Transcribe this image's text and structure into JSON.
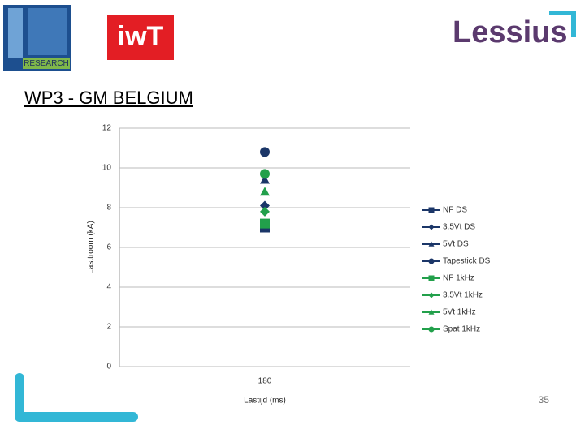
{
  "slide": {
    "logo_left": "RESEARCH",
    "logo_middle": "iwT",
    "logo_right": "Lessius",
    "heading": "WP3 - GM BELGIUM",
    "page_number": "35"
  },
  "chart_data": {
    "type": "scatter",
    "xlabel": "Lastijd (ms)",
    "ylabel": "Lasttroom (kA)",
    "categories": [
      "180"
    ],
    "ylim": [
      0,
      12
    ],
    "yticks": [
      0,
      2,
      4,
      6,
      8,
      10,
      12
    ],
    "grid": true,
    "legend": "right",
    "series": [
      {
        "name": "NF DS",
        "color": "#1b3668",
        "marker": "square",
        "values": [
          7.0
        ]
      },
      {
        "name": "3.5Vt DS",
        "color": "#1b3668",
        "marker": "diamond",
        "values": [
          8.1
        ]
      },
      {
        "name": "5Vt DS",
        "color": "#1b3668",
        "marker": "triangle",
        "values": [
          9.4
        ]
      },
      {
        "name": "Tapestick DS",
        "color": "#1b3668",
        "marker": "circle",
        "values": [
          10.8
        ]
      },
      {
        "name": "NF 1kHz",
        "color": "#22a04b",
        "marker": "square",
        "values": [
          7.2
        ]
      },
      {
        "name": "3.5Vt 1kHz",
        "color": "#22a04b",
        "marker": "diamond",
        "values": [
          7.8
        ]
      },
      {
        "name": "5Vt 1kHz",
        "color": "#22a04b",
        "marker": "triangle",
        "values": [
          8.8
        ]
      },
      {
        "name": "Spat 1kHz",
        "color": "#22a04b",
        "marker": "circle",
        "values": [
          9.7
        ]
      }
    ]
  }
}
